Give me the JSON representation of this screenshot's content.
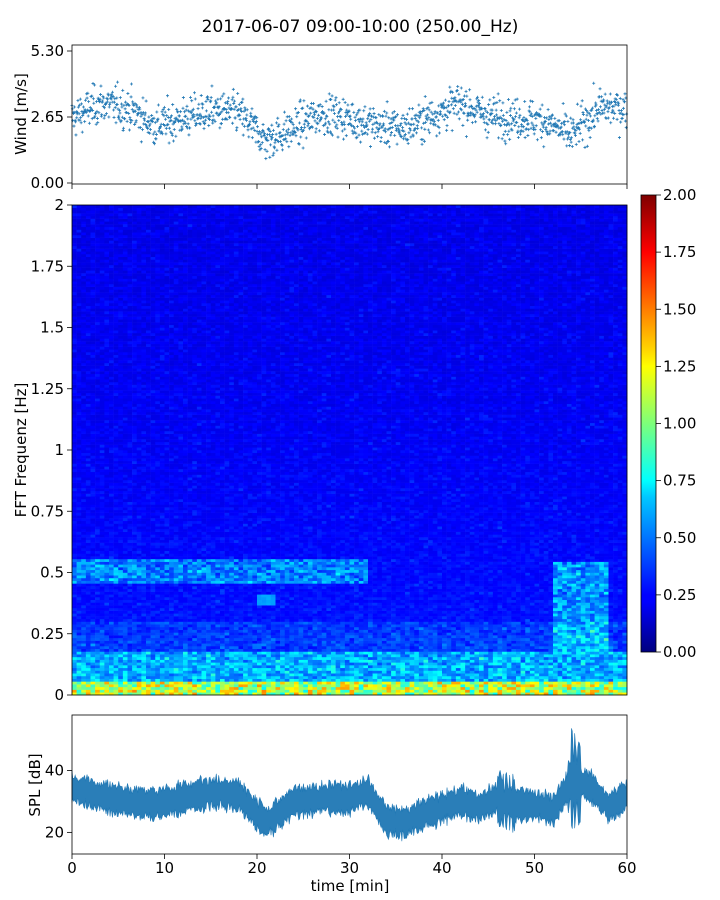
{
  "chart_data": [
    {
      "type": "scatter",
      "title": "2017-06-07 09:00-10:00 (250.00_Hz)",
      "xlabel": "",
      "ylabel": "Wind [m/s]",
      "xlim": [
        0,
        60
      ],
      "ylim": [
        0,
        5.3
      ],
      "yticks": [
        "0.00",
        "2.65",
        "5.30"
      ],
      "marker": "+",
      "color": "#1f77b4",
      "approx_series_mean_by_segment": {
        "x": [
          0,
          3,
          6,
          9,
          12,
          15,
          18,
          21,
          24,
          27,
          30,
          33,
          36,
          39,
          42,
          45,
          48,
          51,
          54,
          57,
          60
        ],
        "y": [
          2.6,
          3.2,
          3.0,
          2.3,
          2.6,
          2.9,
          2.8,
          1.7,
          2.2,
          2.8,
          2.6,
          2.3,
          2.2,
          2.7,
          3.2,
          2.7,
          2.6,
          2.5,
          1.9,
          3.0,
          3.0
        ]
      }
    },
    {
      "type": "heatmap",
      "ylabel": "FFT Frequenz [Hz]",
      "xlim": [
        0,
        60
      ],
      "ylim": [
        0,
        2
      ],
      "yticks": [
        "0",
        "0.25",
        "0.5",
        "0.75",
        "1",
        "1.25",
        "1.5",
        "1.75",
        "2"
      ],
      "colormap": "jet",
      "colorbar": {
        "range": [
          0,
          2
        ],
        "ticks": [
          "0.00",
          "0.25",
          "0.50",
          "0.75",
          "1.00",
          "1.25",
          "1.50",
          "1.75",
          "2.00"
        ]
      },
      "features": [
        {
          "label": "low-frequency high energy band",
          "freq_hz": [
            0,
            0.05
          ],
          "time_min": [
            0,
            60
          ]
        },
        {
          "label": "0.5 Hz band",
          "freq_hz": [
            0.45,
            0.55
          ],
          "time_min": [
            0,
            32
          ]
        },
        {
          "label": "elevated band",
          "freq_hz": [
            0.2,
            0.55
          ],
          "time_min": [
            52,
            58
          ]
        }
      ]
    },
    {
      "type": "line",
      "xlabel": "time [min]",
      "ylabel": "SPL [dB]",
      "xlim": [
        0,
        60
      ],
      "ylim": [
        13,
        58
      ],
      "xticks": [
        "0",
        "10",
        "20",
        "30",
        "40",
        "50",
        "60"
      ],
      "yticks": [
        "20",
        "40"
      ],
      "color": "#1f77b4",
      "approx_series_mean_by_segment": {
        "x": [
          0,
          3,
          6,
          9,
          12,
          15,
          18,
          21,
          24,
          27,
          30,
          32,
          34,
          36,
          38,
          40,
          42,
          44,
          46,
          48,
          50,
          52,
          54,
          56,
          58,
          60
        ],
        "y": [
          34,
          32,
          30,
          29,
          31,
          33,
          32,
          23,
          30,
          31,
          31,
          33,
          24,
          23,
          26,
          28,
          30,
          28,
          31,
          29,
          29,
          27,
          37,
          35,
          28,
          32
        ]
      }
    }
  ]
}
